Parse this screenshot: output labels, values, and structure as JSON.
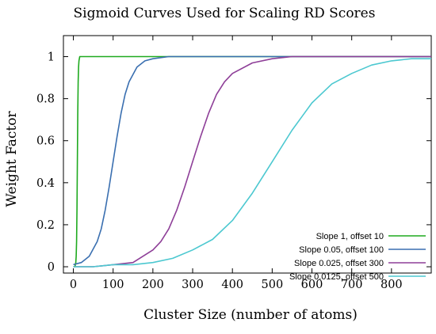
{
  "chart_data": {
    "type": "line",
    "title": "Sigmoid Curves Used for Scaling RD Scores",
    "xlabel": "Cluster Size (number of atoms)",
    "ylabel": "Weight Factor",
    "xlim": [
      -25,
      900
    ],
    "ylim": [
      -0.03,
      1.1
    ],
    "x_ticks": [
      0,
      100,
      200,
      300,
      400,
      500,
      600,
      700,
      800
    ],
    "y_ticks": [
      0,
      0.2,
      0.4,
      0.6,
      0.8,
      1
    ],
    "x_tick_labels": [
      "0",
      "100",
      "200",
      "300",
      "400",
      "500",
      "600",
      "700",
      "800"
    ],
    "y_tick_labels": [
      "0",
      "0.2",
      "0.4",
      "0.6",
      "0.8",
      "1"
    ],
    "legend_position": "bottom-right",
    "grid": false,
    "series": [
      {
        "name": "Slope 1, offset 10",
        "color": "#1faa1f",
        "x": [
          0,
          2,
          4,
          5,
          6,
          7,
          8,
          9,
          10,
          11,
          12,
          13,
          14,
          15,
          16,
          18,
          20,
          25,
          30,
          100,
          200,
          300,
          400,
          500,
          600,
          700,
          800,
          900
        ],
        "y": [
          0.0,
          0.0,
          0.0,
          0.01,
          0.02,
          0.05,
          0.12,
          0.27,
          0.5,
          0.73,
          0.88,
          0.95,
          0.98,
          0.99,
          1.0,
          1.0,
          1.0,
          1.0,
          1.0,
          1.0,
          1.0,
          1.0,
          1.0,
          1.0,
          1.0,
          1.0,
          1.0,
          1.0
        ]
      },
      {
        "name": "Slope 0.05, offset 100",
        "color": "#3a6fb0",
        "x": [
          0,
          20,
          40,
          60,
          70,
          80,
          90,
          100,
          110,
          120,
          130,
          140,
          160,
          180,
          200,
          240,
          300,
          400,
          500,
          600,
          700,
          800,
          900
        ],
        "y": [
          0.01,
          0.02,
          0.05,
          0.12,
          0.18,
          0.27,
          0.38,
          0.5,
          0.62,
          0.73,
          0.82,
          0.88,
          0.95,
          0.98,
          0.99,
          1.0,
          1.0,
          1.0,
          1.0,
          1.0,
          1.0,
          1.0,
          1.0
        ]
      },
      {
        "name": "Slope 0.025, offset 300",
        "color": "#8e3f98",
        "x": [
          0,
          50,
          100,
          150,
          200,
          220,
          240,
          260,
          280,
          300,
          320,
          340,
          360,
          380,
          400,
          450,
          500,
          550,
          600,
          700,
          800,
          900
        ],
        "y": [
          0.0,
          0.0,
          0.01,
          0.02,
          0.08,
          0.12,
          0.18,
          0.27,
          0.38,
          0.5,
          0.62,
          0.73,
          0.82,
          0.88,
          0.92,
          0.97,
          0.99,
          1.0,
          1.0,
          1.0,
          1.0,
          1.0
        ]
      },
      {
        "name": "Slope 0.0125, offset 500",
        "color": "#4cc8d0",
        "x": [
          0,
          50,
          100,
          150,
          200,
          250,
          300,
          350,
          400,
          450,
          500,
          550,
          600,
          650,
          700,
          750,
          800,
          850,
          900
        ],
        "y": [
          0.0,
          0.0,
          0.01,
          0.01,
          0.02,
          0.04,
          0.08,
          0.13,
          0.22,
          0.35,
          0.5,
          0.65,
          0.78,
          0.87,
          0.92,
          0.96,
          0.98,
          0.99,
          0.99
        ]
      }
    ]
  }
}
